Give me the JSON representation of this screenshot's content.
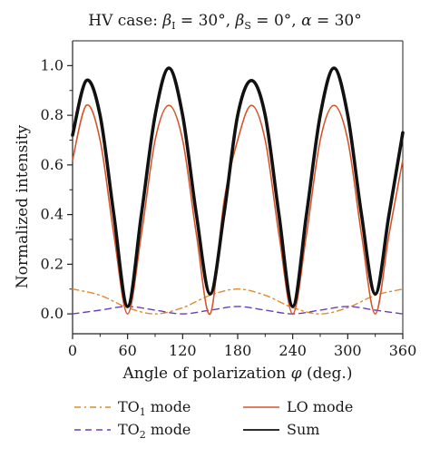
{
  "chart_data": {
    "type": "line",
    "title": {
      "prefix": "HV case: ",
      "beta": "β",
      "beta_I_sub": "I",
      "beta_I_val": " = 30°, ",
      "beta_S_sub": "S",
      "beta_S_val": " = 0°, ",
      "alpha": "α",
      "alpha_val": " = 30°"
    },
    "xlabel": {
      "text": "Angle of polarization ",
      "symbol": "φ",
      "unit": " (deg.)"
    },
    "ylabel": "Normalized intensity",
    "xlim": [
      0,
      360
    ],
    "ylim": [
      -0.08,
      1.1
    ],
    "xticks": [
      0,
      60,
      120,
      180,
      240,
      300,
      360
    ],
    "yticks": [
      0.0,
      0.2,
      0.4,
      0.6,
      0.8,
      1.0
    ],
    "xtick_labels": [
      "0",
      "60",
      "120",
      "180",
      "240",
      "300",
      "360"
    ],
    "ytick_labels": [
      "0.0",
      "0.2",
      "0.4",
      "0.6",
      "0.8",
      "1.0"
    ],
    "grid": false,
    "legend_position": "bottom",
    "series": [
      {
        "key": "to1",
        "name": "TO",
        "name_sub": "1",
        "name_suffix": " mode",
        "color": "#e08a2b",
        "dash": "dash-dot",
        "x": [
          0,
          30,
          60,
          90,
          120,
          150,
          180,
          210,
          240,
          270,
          300,
          330,
          360
        ],
        "y": [
          0.1,
          0.075,
          0.025,
          0.0,
          0.025,
          0.075,
          0.1,
          0.075,
          0.025,
          0.0,
          0.025,
          0.075,
          0.1
        ]
      },
      {
        "key": "to2",
        "name": "TO",
        "name_sub": "2",
        "name_suffix": " mode",
        "color": "#6a3fb5",
        "dash": "dashed",
        "x": [
          0,
          30,
          60,
          90,
          120,
          150,
          180,
          210,
          240,
          270,
          300,
          330,
          360
        ],
        "y": [
          0.0,
          0.015,
          0.03,
          0.015,
          0.0,
          0.015,
          0.03,
          0.015,
          0.0,
          0.015,
          0.03,
          0.015,
          0.0
        ]
      },
      {
        "key": "lo",
        "name": "LO mode",
        "color": "#d6542a",
        "dash": "solid",
        "x": [
          0,
          15,
          30,
          45,
          60,
          75,
          90,
          105,
          120,
          135,
          150,
          165,
          180,
          195,
          210,
          225,
          240,
          255,
          270,
          285,
          300,
          315,
          330,
          345,
          360
        ],
        "y": [
          0.62,
          0.84,
          0.7,
          0.32,
          0.0,
          0.32,
          0.7,
          0.84,
          0.7,
          0.32,
          0.0,
          0.45,
          0.7,
          0.84,
          0.7,
          0.32,
          0.0,
          0.32,
          0.7,
          0.84,
          0.7,
          0.32,
          0.0,
          0.32,
          0.62
        ]
      },
      {
        "key": "sum",
        "name": "Sum",
        "color": "#111111",
        "dash": "solid",
        "x": [
          0,
          15,
          30,
          45,
          60,
          75,
          90,
          105,
          120,
          135,
          150,
          165,
          180,
          195,
          210,
          225,
          240,
          255,
          270,
          285,
          300,
          315,
          330,
          345,
          360
        ],
        "y": [
          0.72,
          0.94,
          0.8,
          0.4,
          0.03,
          0.4,
          0.8,
          0.99,
          0.8,
          0.4,
          0.08,
          0.4,
          0.8,
          0.94,
          0.8,
          0.4,
          0.03,
          0.4,
          0.8,
          0.99,
          0.8,
          0.4,
          0.08,
          0.4,
          0.73
        ]
      }
    ]
  }
}
